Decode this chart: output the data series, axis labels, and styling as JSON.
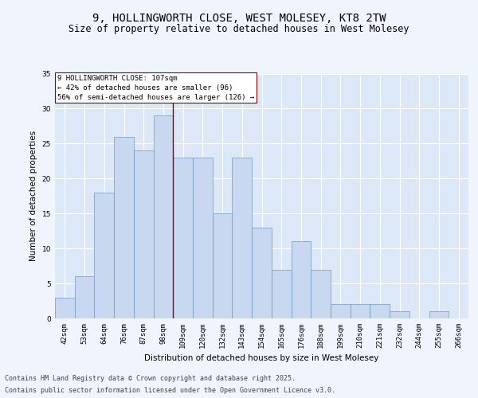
{
  "title1": "9, HOLLINGWORTH CLOSE, WEST MOLESEY, KT8 2TW",
  "title2": "Size of property relative to detached houses in West Molesey",
  "xlabel": "Distribution of detached houses by size in West Molesey",
  "ylabel": "Number of detached properties",
  "categories": [
    "42sqm",
    "53sqm",
    "64sqm",
    "76sqm",
    "87sqm",
    "98sqm",
    "109sqm",
    "120sqm",
    "132sqm",
    "143sqm",
    "154sqm",
    "165sqm",
    "176sqm",
    "188sqm",
    "199sqm",
    "210sqm",
    "221sqm",
    "232sqm",
    "244sqm",
    "255sqm",
    "266sqm"
  ],
  "values": [
    3,
    6,
    18,
    26,
    24,
    29,
    23,
    23,
    15,
    23,
    13,
    7,
    11,
    7,
    2,
    2,
    2,
    1,
    0,
    1,
    0
  ],
  "bar_color": "#c8d8f0",
  "bar_edge_color": "#7099c0",
  "vline_color": "#8b0000",
  "annotation_line1": "9 HOLLINGWORTH CLOSE: 107sqm",
  "annotation_line2": "← 42% of detached houses are smaller (96)",
  "annotation_line3": "56% of semi-detached houses are larger (126) →",
  "annotation_box_color": "#ffffff",
  "annotation_box_edge": "#8b0000",
  "ylim": [
    0,
    35
  ],
  "yticks": [
    0,
    5,
    10,
    15,
    20,
    25,
    30,
    35
  ],
  "plot_bg": "#dce8f8",
  "fig_bg": "#f0f4fc",
  "footer1": "Contains HM Land Registry data © Crown copyright and database right 2025.",
  "footer2": "Contains public sector information licensed under the Open Government Licence v3.0.",
  "title_fontsize": 10,
  "subtitle_fontsize": 8.5,
  "axis_label_fontsize": 7.5,
  "tick_fontsize": 6.5,
  "annotation_fontsize": 6.5,
  "footer_fontsize": 6.0
}
